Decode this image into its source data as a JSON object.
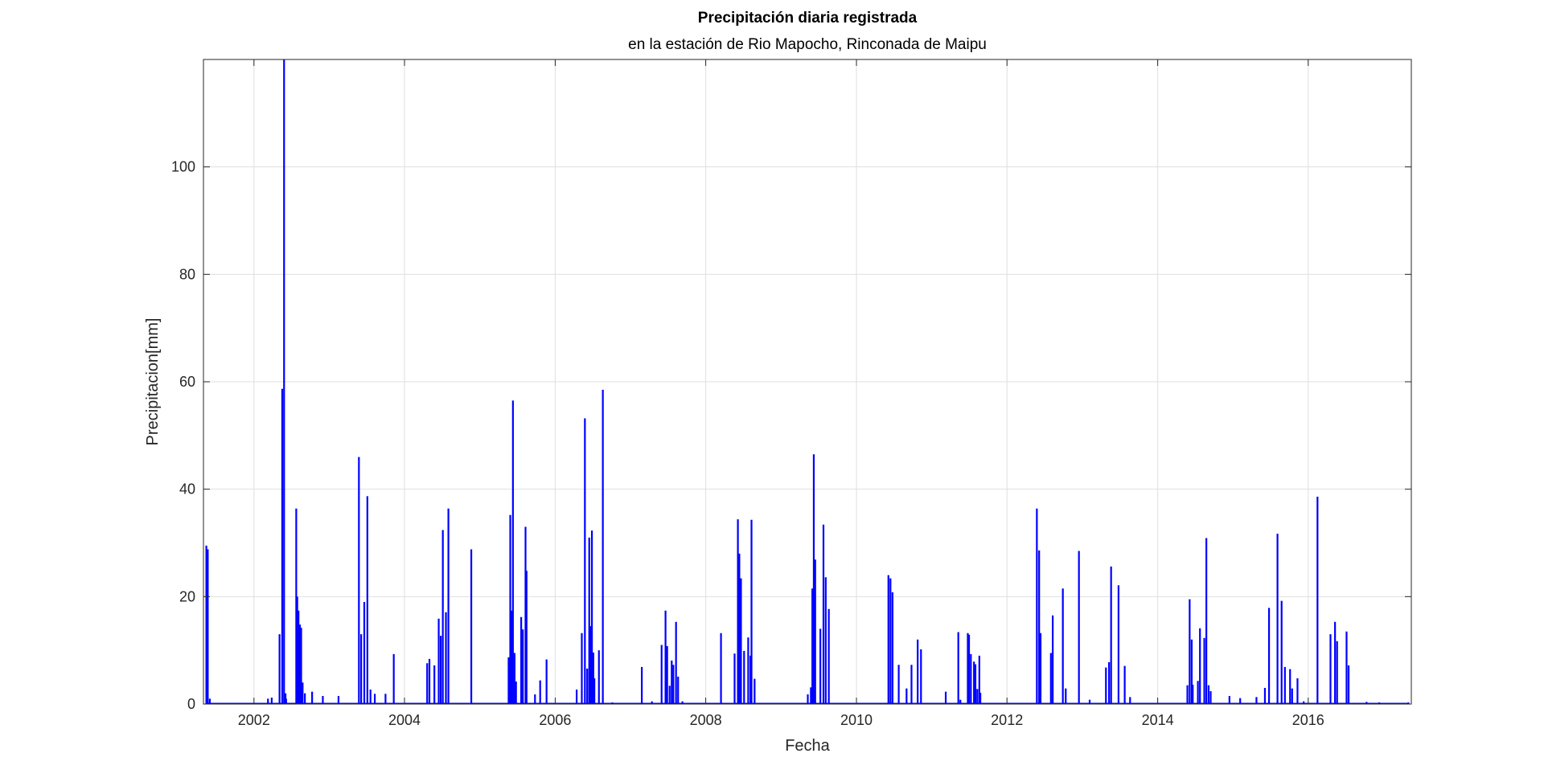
{
  "chart_data": {
    "type": "bar",
    "title": "Precipitación diaria registrada",
    "subtitle": "en la estación de Rio Mapocho, Rinconada de Maipu",
    "xlabel": "Fecha",
    "ylabel": "Precipitacion[mm]",
    "xlim": [
      "2001-05-01",
      "2017-05-15"
    ],
    "ylim": [
      0,
      120
    ],
    "xticks": [
      "2002",
      "2004",
      "2006",
      "2008",
      "2010",
      "2012",
      "2014",
      "2016"
    ],
    "yticks": [
      "0",
      "20",
      "40",
      "60",
      "80",
      "100"
    ],
    "grid": true,
    "line_color": "#0000FF",
    "series": [
      {
        "dates": [
          "2001-05-15",
          "2001-05-22",
          "2001-06-01",
          "2002-03-10",
          "2002-03-28",
          "2002-05-05",
          "2002-05-18",
          "2002-05-27",
          "2002-06-03",
          "2002-06-06",
          "2002-07-25",
          "2002-07-30",
          "2002-08-05",
          "2002-08-12",
          "2002-08-18",
          "2002-08-25",
          "2002-09-05",
          "2002-10-10",
          "2002-12-01",
          "2003-02-15",
          "2003-05-25",
          "2003-06-05",
          "2003-06-20",
          "2003-07-05",
          "2003-07-20",
          "2003-08-10",
          "2003-10-01",
          "2003-11-10",
          "2004-04-20",
          "2004-05-01",
          "2004-05-25",
          "2004-06-15",
          "2004-06-25",
          "2004-07-05",
          "2004-07-20",
          "2004-08-01",
          "2004-11-20",
          "2005-05-20",
          "2005-05-28",
          "2005-06-03",
          "2005-06-10",
          "2005-06-18",
          "2005-06-25",
          "2005-07-20",
          "2005-07-28",
          "2005-08-10",
          "2005-08-15",
          "2005-09-25",
          "2005-10-20",
          "2005-11-20",
          "2006-04-15",
          "2006-05-10",
          "2006-05-25",
          "2006-06-05",
          "2006-06-15",
          "2006-06-20",
          "2006-06-28",
          "2006-07-05",
          "2006-07-10",
          "2006-08-01",
          "2006-08-20",
          "2006-10-05",
          "2007-02-25",
          "2007-04-15",
          "2007-06-01",
          "2007-06-20",
          "2007-06-28",
          "2007-07-10",
          "2007-07-20",
          "2007-07-28",
          "2007-08-10",
          "2007-08-20",
          "2007-09-10",
          "2008-03-15",
          "2008-05-20",
          "2008-06-05",
          "2008-06-12",
          "2008-06-20",
          "2008-07-05",
          "2008-07-25",
          "2008-08-05",
          "2008-08-10",
          "2008-08-25",
          "2009-05-10",
          "2009-05-25",
          "2009-06-01",
          "2009-06-08",
          "2009-06-15",
          "2009-07-10",
          "2009-07-25",
          "2009-08-05",
          "2009-08-20",
          "2010-06-05",
          "2010-06-15",
          "2010-06-25",
          "2010-07-25",
          "2010-09-01",
          "2010-09-25",
          "2010-10-25",
          "2010-11-10",
          "2011-03-10",
          "2011-05-10",
          "2011-05-20",
          "2011-06-25",
          "2011-07-01",
          "2011-07-10",
          "2011-07-25",
          "2011-08-01",
          "2011-08-10",
          "2011-08-20",
          "2011-08-25",
          "2012-05-25",
          "2012-06-05",
          "2012-06-12",
          "2012-08-01",
          "2012-08-10",
          "2012-09-28",
          "2012-10-12",
          "2012-12-15",
          "2013-02-05",
          "2013-04-25",
          "2013-05-10",
          "2013-05-20",
          "2013-06-25",
          "2013-07-25",
          "2013-08-20",
          "2014-05-25",
          "2014-06-05",
          "2014-06-15",
          "2014-06-20",
          "2014-07-15",
          "2014-07-25",
          "2014-08-15",
          "2014-08-25",
          "2014-09-05",
          "2014-09-15",
          "2014-12-15",
          "2015-02-05",
          "2015-04-25",
          "2015-06-05",
          "2015-06-25",
          "2015-08-05",
          "2015-08-25",
          "2015-09-10",
          "2015-10-05",
          "2015-10-15",
          "2015-11-10",
          "2015-12-10",
          "2016-02-15",
          "2016-04-18",
          "2016-05-10",
          "2016-05-20",
          "2016-07-05",
          "2016-07-15",
          "2016-10-10",
          "2016-12-10",
          "2017-05-01"
        ],
        "values": [
          29.5,
          28.8,
          1.0,
          1.0,
          1.2,
          13.0,
          58.7,
          120.0,
          2.0,
          1.0,
          36.4,
          20.0,
          17.4,
          14.8,
          14.2,
          4.0,
          2.0,
          2.3,
          1.5,
          1.5,
          46.0,
          13.0,
          19.0,
          38.7,
          2.7,
          1.9,
          1.9,
          9.3,
          7.6,
          8.4,
          7.2,
          15.9,
          12.7,
          32.4,
          17.1,
          36.4,
          28.8,
          8.7,
          35.2,
          17.4,
          56.5,
          9.5,
          4.2,
          16.2,
          13.9,
          33.0,
          24.8,
          1.8,
          4.4,
          8.3,
          2.7,
          13.2,
          53.2,
          6.6,
          31.0,
          14.5,
          32.3,
          9.6,
          4.8,
          10.0,
          58.5,
          0.3,
          6.9,
          0.5,
          11.0,
          17.4,
          10.8,
          3.4,
          8.1,
          7.3,
          15.3,
          5.1,
          0.5,
          13.2,
          9.4,
          34.4,
          28.0,
          23.4,
          9.9,
          12.4,
          9.0,
          34.3,
          4.7,
          1.8,
          3.1,
          21.5,
          46.5,
          26.9,
          14.0,
          33.4,
          23.6,
          17.7,
          24.0,
          23.4,
          20.8,
          7.3,
          2.9,
          7.3,
          12.0,
          10.2,
          2.3,
          13.4,
          0.8,
          13.2,
          12.9,
          9.3,
          7.9,
          7.4,
          2.8,
          9.0,
          2.1,
          36.4,
          28.6,
          13.2,
          9.5,
          16.5,
          21.5,
          2.9,
          28.5,
          0.8,
          6.8,
          7.8,
          25.6,
          22.1,
          7.1,
          1.3,
          3.5,
          19.5,
          12.0,
          3.6,
          4.3,
          14.1,
          12.3,
          30.9,
          3.5,
          2.4,
          1.5,
          1.1,
          1.3,
          3.0,
          17.9,
          31.7,
          19.2,
          6.9,
          6.5,
          2.9,
          4.8,
          0.5,
          38.6,
          13.0,
          15.3,
          11.7,
          13.5,
          7.2,
          0.4,
          0.3,
          0.3
        ]
      }
    ]
  }
}
